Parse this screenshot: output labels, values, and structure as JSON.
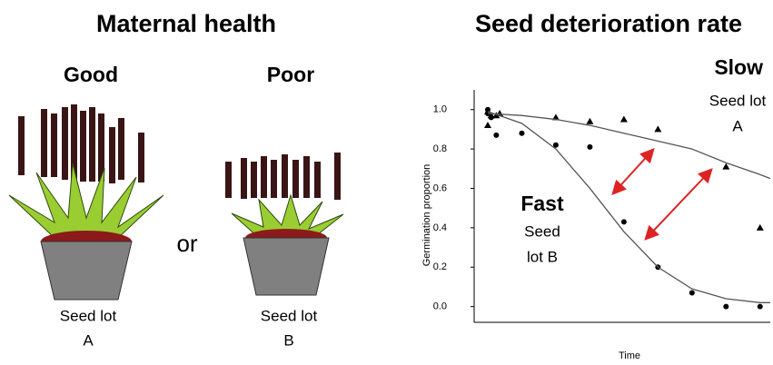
{
  "illustration": {
    "title": "Maternal health",
    "good": "Good",
    "poor": "Poor",
    "or": "or",
    "lot_a": [
      "Seed lot",
      "A"
    ],
    "lot_b": [
      "Seed lot",
      "B"
    ]
  },
  "chart_data": {
    "type": "scatter",
    "title": "Seed deterioration rate",
    "ylabel": "Germination proportion",
    "xlabel": "Time",
    "annotations": {
      "slow": "Slow",
      "lot_a": [
        "Seed lot",
        "A"
      ],
      "fast": "Fast",
      "lot_b": [
        "Seed",
        "lot B"
      ]
    },
    "xlim": [
      -0.4,
      8.3
    ],
    "ylim": [
      -0.08,
      1.1
    ],
    "yticks": [
      {
        "value": 0,
        "label": "0.0"
      },
      {
        "value": 0.2,
        "label": "0.2"
      },
      {
        "value": 0.4,
        "label": "0.4"
      },
      {
        "value": 0.6,
        "label": "0.6"
      },
      {
        "value": 0.8,
        "label": "0.8"
      },
      {
        "value": 1,
        "label": "1.0"
      }
    ],
    "series": [
      {
        "marker": "triangle",
        "color": "#000000",
        "x": [
          0,
          0,
          0.1,
          0.25,
          0.35,
          2,
          3,
          4,
          5,
          7,
          8
        ],
        "values": [
          0.99,
          0.92,
          0.97,
          0.97,
          0.98,
          0.96,
          0.94,
          0.95,
          0.9,
          0.71,
          0.4
        ]
      },
      {
        "marker": "circle",
        "color": "#000000",
        "x": [
          0,
          0,
          0.1,
          0.25,
          1,
          2,
          3,
          4,
          5,
          6,
          7,
          8
        ],
        "values": [
          1.0,
          0.98,
          0.96,
          0.87,
          0.88,
          0.82,
          0.81,
          0.43,
          0.2,
          0.07,
          0.0,
          0.0
        ]
      },
      {
        "marker": "line",
        "color": "#555555",
        "x": [
          0,
          1,
          2,
          3,
          4,
          5,
          6,
          7,
          8,
          8.3
        ],
        "values": [
          0.98,
          0.97,
          0.95,
          0.92,
          0.88,
          0.84,
          0.8,
          0.73,
          0.67,
          0.65
        ]
      },
      {
        "marker": "line",
        "color": "#555555",
        "x": [
          0,
          1,
          2,
          3,
          4,
          5,
          6,
          7,
          8,
          8.3
        ],
        "values": [
          0.99,
          0.93,
          0.8,
          0.6,
          0.38,
          0.2,
          0.09,
          0.04,
          0.02,
          0.02
        ]
      }
    ]
  }
}
